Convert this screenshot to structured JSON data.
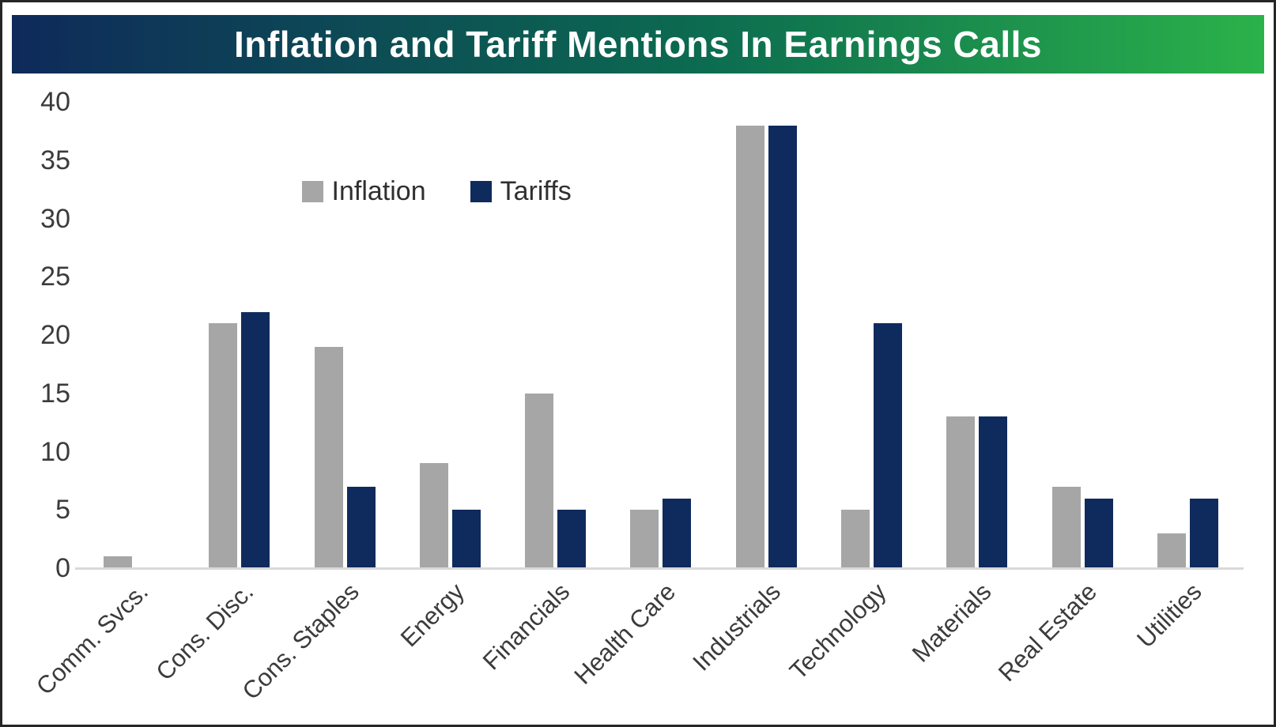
{
  "header": {
    "title": "Inflation and Tariff Mentions In Earnings Calls",
    "gradient_start": "#0e2a5a",
    "gradient_mid": "#0c6b50",
    "gradient_end": "#2bb24a"
  },
  "chart_data": {
    "type": "bar",
    "title": "Inflation and Tariff Mentions In Earnings Calls",
    "categories": [
      "Comm. Svcs.",
      "Cons. Disc.",
      "Cons. Staples",
      "Energy",
      "Financials",
      "Health Care",
      "Industrials",
      "Technology",
      "Materials",
      "Real Estate",
      "Utilities"
    ],
    "series": [
      {
        "name": "Inflation",
        "color": "#a6a6a6",
        "values": [
          1,
          21,
          19,
          9,
          15,
          5,
          38,
          5,
          13,
          7,
          3
        ]
      },
      {
        "name": "Tariffs",
        "color": "#0f2b5e",
        "values": [
          0,
          22,
          7,
          5,
          5,
          6,
          38,
          21,
          13,
          6,
          6
        ]
      }
    ],
    "xlabel": "",
    "ylabel": "",
    "ylim": [
      0,
      40
    ],
    "yticks": [
      0,
      5,
      10,
      15,
      20,
      25,
      30,
      35,
      40
    ],
    "grid": false,
    "legend_position": "inside-upper-left",
    "axis_line_color": "#d9d9d9"
  }
}
